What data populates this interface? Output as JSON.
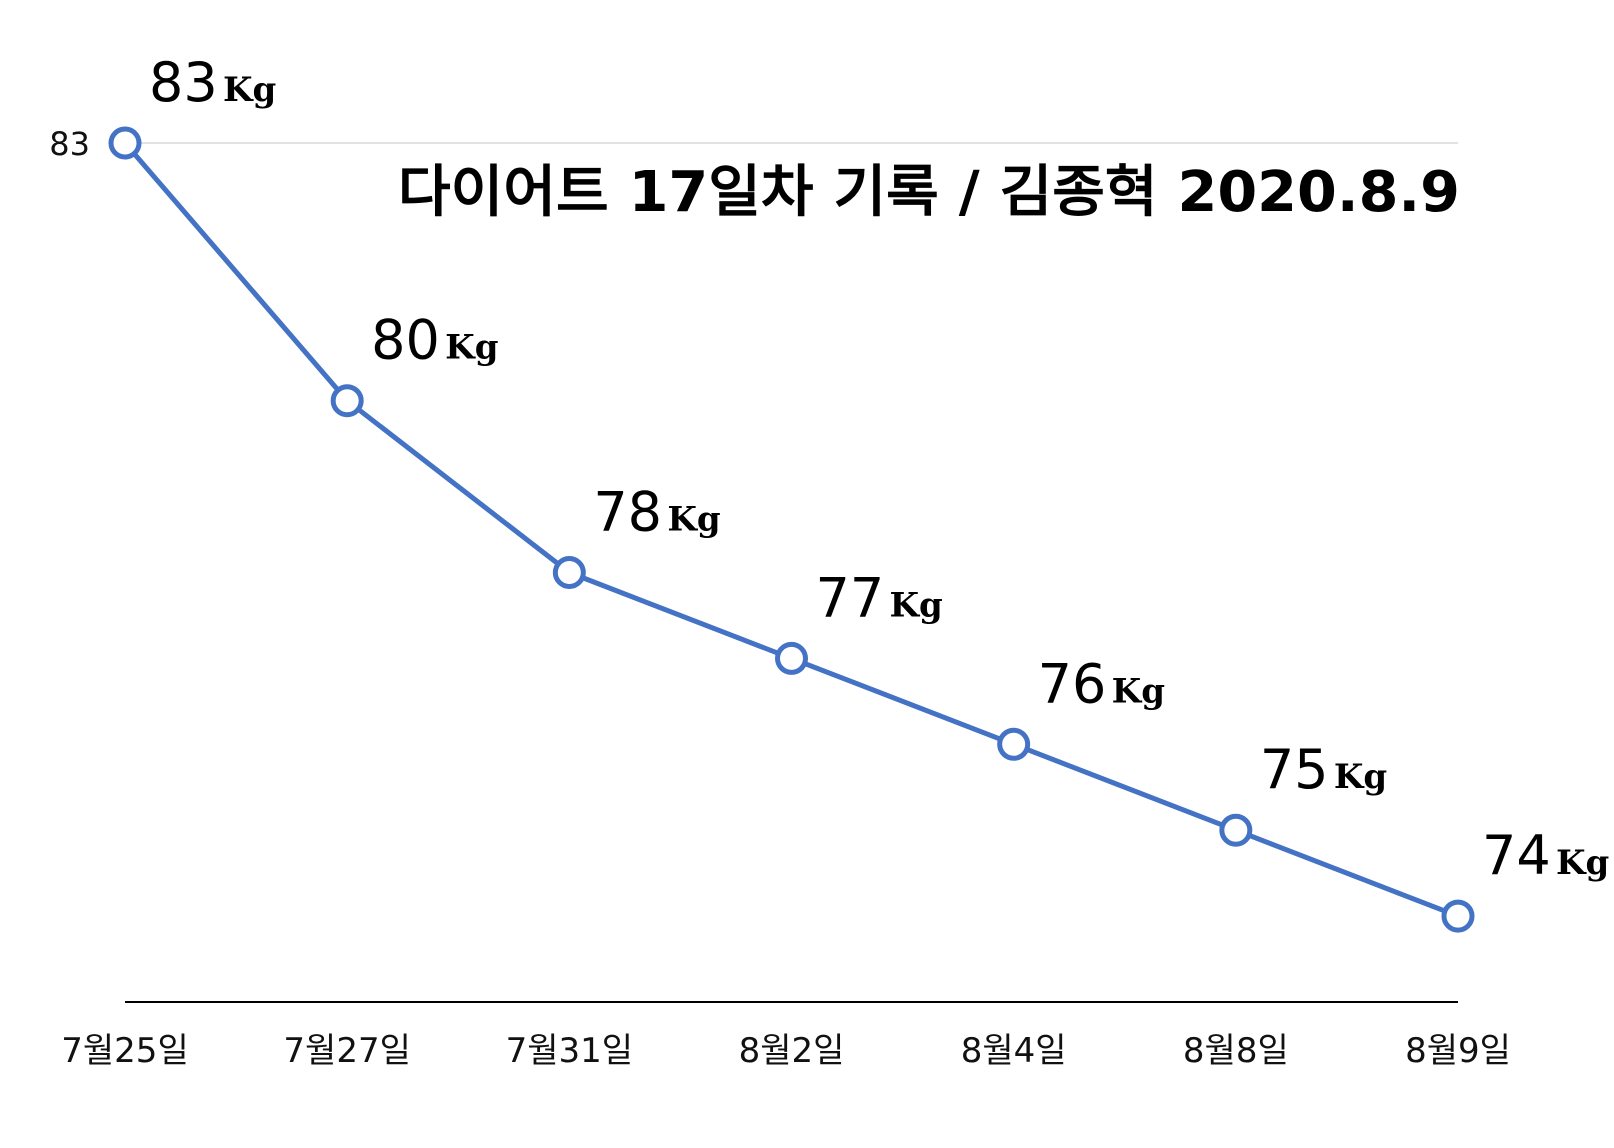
{
  "chart_data": {
    "type": "line",
    "title": "다이어트 17일차 기록 / 김종혁 2020.8.9",
    "categories": [
      "7월25일",
      "7월27일",
      "7월31일",
      "8월2일",
      "8월4일",
      "8월8일",
      "8월9일"
    ],
    "series": [
      {
        "values": [
          83,
          80,
          78,
          77,
          76,
          75,
          74
        ],
        "color": "#4472c4"
      }
    ],
    "data_labels": [
      "83",
      "80",
      "78",
      "77",
      "76",
      "75",
      "74"
    ],
    "data_label_unit": "Kg",
    "yticks": [
      "83"
    ],
    "ylim": [
      73,
      83
    ],
    "grid": "horizontal line at 83",
    "legend": "none"
  }
}
